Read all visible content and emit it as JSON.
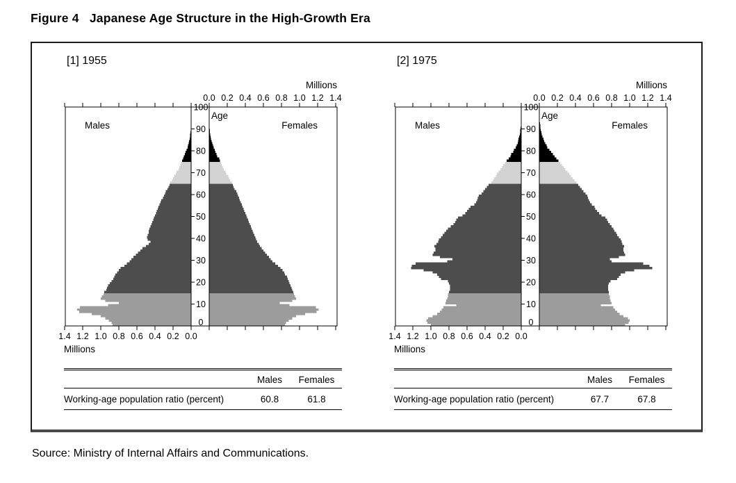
{
  "figure_title": "Figure 4   Japanese Age Structure in the High-Growth Era",
  "source_line": "Source: Ministry of Internal Affairs and Communications.",
  "chart_data": [
    {
      "type": "bar",
      "subtype": "population-pyramid",
      "panel_label": "[1] 1955",
      "year": "1955",
      "left_label": "Males",
      "right_label": "Females",
      "age_axis_label": "Age",
      "value_axis_label": "Millions",
      "value_axis_max": 1.4,
      "age_axis_max": 100,
      "grid": false,
      "top_tick_labels": [
        "0.0",
        "0.2",
        "0.4",
        "0.6",
        "0.8",
        "1.0",
        "1.2",
        "1.4"
      ],
      "bottom_tick_labels": [
        "1.4",
        "1.2",
        "1.0",
        "0.8",
        "0.6",
        "0.4",
        "0.2",
        "0.0"
      ],
      "age_tick_labels": [
        "0",
        "10",
        "20",
        "30",
        "40",
        "50",
        "60",
        "70",
        "80",
        "90",
        "100"
      ],
      "age_groups": [
        {
          "range": "0-14",
          "from": 0,
          "to": 14,
          "color": "#9c9c9c"
        },
        {
          "range": "15-64",
          "from": 15,
          "to": 64,
          "color": "#4d4d4d"
        },
        {
          "range": "65-74",
          "from": 65,
          "to": 74,
          "color": "#d2d2d2"
        },
        {
          "range": "75+",
          "from": 75,
          "to": 110,
          "color": "#000000"
        }
      ],
      "series": [
        {
          "name": "Males",
          "side": "left",
          "unit": "millions",
          "values": [
            0.87,
            0.88,
            0.91,
            0.95,
            1.0,
            1.1,
            1.24,
            1.26,
            1.23,
            0.92,
            0.8,
            0.95,
            1.0,
            0.99,
            0.97,
            0.96,
            0.94,
            0.93,
            0.92,
            0.9,
            0.88,
            0.86,
            0.85,
            0.84,
            0.82,
            0.8,
            0.78,
            0.74,
            0.71,
            0.68,
            0.66,
            0.64,
            0.61,
            0.59,
            0.56,
            0.54,
            0.5,
            0.47,
            0.45,
            0.48,
            0.49,
            0.48,
            0.47,
            0.47,
            0.46,
            0.45,
            0.44,
            0.43,
            0.42,
            0.41,
            0.4,
            0.39,
            0.38,
            0.37,
            0.36,
            0.35,
            0.34,
            0.33,
            0.31,
            0.3,
            0.29,
            0.28,
            0.26,
            0.25,
            0.24,
            0.23,
            0.21,
            0.2,
            0.19,
            0.17,
            0.16,
            0.14,
            0.13,
            0.12,
            0.11,
            0.1,
            0.09,
            0.08,
            0.07,
            0.06,
            0.05,
            0.04,
            0.033,
            0.027,
            0.022,
            0.017,
            0.013,
            0.01,
            0.007,
            0.005,
            0.004,
            0.003,
            0.002
          ]
        },
        {
          "name": "Females",
          "side": "right",
          "unit": "millions",
          "values": [
            0.84,
            0.85,
            0.88,
            0.92,
            0.96,
            1.06,
            1.19,
            1.21,
            1.18,
            0.89,
            0.78,
            0.92,
            0.96,
            0.95,
            0.94,
            0.93,
            0.92,
            0.91,
            0.9,
            0.89,
            0.88,
            0.87,
            0.86,
            0.84,
            0.83,
            0.81,
            0.79,
            0.76,
            0.73,
            0.7,
            0.68,
            0.66,
            0.64,
            0.62,
            0.6,
            0.58,
            0.56,
            0.55,
            0.53,
            0.52,
            0.51,
            0.5,
            0.49,
            0.48,
            0.47,
            0.46,
            0.45,
            0.44,
            0.43,
            0.42,
            0.41,
            0.4,
            0.39,
            0.38,
            0.37,
            0.36,
            0.35,
            0.34,
            0.33,
            0.32,
            0.31,
            0.3,
            0.28,
            0.27,
            0.26,
            0.25,
            0.23,
            0.22,
            0.21,
            0.19,
            0.18,
            0.16,
            0.15,
            0.14,
            0.13,
            0.12,
            0.11,
            0.09,
            0.08,
            0.07,
            0.06,
            0.05,
            0.042,
            0.034,
            0.027,
            0.021,
            0.016,
            0.012,
            0.009,
            0.007,
            0.005,
            0.004,
            0.003,
            0.002,
            0.001
          ]
        }
      ],
      "table": {
        "col_headers": [
          "Males",
          "Females"
        ],
        "rows": [
          {
            "label": "Working-age population ratio (percent)",
            "values": [
              "60.8",
              "61.8"
            ]
          }
        ]
      }
    },
    {
      "type": "bar",
      "subtype": "population-pyramid",
      "panel_label": "[2] 1975",
      "year": "1975",
      "left_label": "Males",
      "right_label": "Females",
      "age_axis_label": "Age",
      "value_axis_label": "Millions",
      "value_axis_max": 1.4,
      "age_axis_max": 100,
      "grid": false,
      "top_tick_labels": [
        "0.0",
        "0.2",
        "0.4",
        "0.6",
        "0.8",
        "1.0",
        "1.2",
        "1.4"
      ],
      "bottom_tick_labels": [
        "1.4",
        "1.2",
        "1.0",
        "0.8",
        "0.6",
        "0.4",
        "0.2",
        "0.0"
      ],
      "age_tick_labels": [
        "0",
        "10",
        "20",
        "30",
        "40",
        "50",
        "60",
        "70",
        "80",
        "90",
        "100"
      ],
      "age_groups": [
        {
          "range": "0-14",
          "from": 0,
          "to": 14,
          "color": "#9c9c9c"
        },
        {
          "range": "15-64",
          "from": 15,
          "to": 64,
          "color": "#4d4d4d"
        },
        {
          "range": "65-74",
          "from": 65,
          "to": 74,
          "color": "#d2d2d2"
        },
        {
          "range": "75+",
          "from": 75,
          "to": 110,
          "color": "#000000"
        }
      ],
      "series": [
        {
          "name": "Males",
          "side": "left",
          "unit": "millions",
          "values": [
            1.0,
            1.04,
            1.05,
            1.03,
            0.98,
            0.93,
            0.9,
            0.88,
            0.86,
            0.72,
            0.84,
            0.83,
            0.82,
            0.81,
            0.81,
            0.8,
            0.79,
            0.79,
            0.79,
            0.8,
            0.81,
            0.89,
            0.91,
            0.93,
            0.98,
            1.08,
            1.22,
            1.21,
            1.17,
            0.82,
            0.76,
            0.9,
            0.98,
            0.97,
            0.95,
            0.95,
            0.96,
            0.94,
            0.92,
            0.91,
            0.89,
            0.87,
            0.85,
            0.83,
            0.81,
            0.78,
            0.75,
            0.73,
            0.72,
            0.7,
            0.65,
            0.62,
            0.6,
            0.58,
            0.56,
            0.52,
            0.5,
            0.49,
            0.48,
            0.47,
            0.44,
            0.42,
            0.4,
            0.38,
            0.36,
            0.33,
            0.31,
            0.3,
            0.28,
            0.27,
            0.25,
            0.23,
            0.21,
            0.2,
            0.18,
            0.16,
            0.14,
            0.12,
            0.11,
            0.09,
            0.08,
            0.06,
            0.05,
            0.04,
            0.035,
            0.03,
            0.022,
            0.017,
            0.013,
            0.01,
            0.007,
            0.005,
            0.004,
            0.003,
            0.002,
            0.001
          ]
        },
        {
          "name": "Females",
          "side": "right",
          "unit": "millions",
          "values": [
            0.95,
            0.99,
            1.0,
            0.98,
            0.93,
            0.89,
            0.86,
            0.84,
            0.82,
            0.68,
            0.8,
            0.79,
            0.78,
            0.78,
            0.77,
            0.77,
            0.76,
            0.76,
            0.76,
            0.77,
            0.79,
            0.86,
            0.88,
            0.9,
            0.95,
            1.05,
            1.25,
            1.22,
            1.15,
            0.8,
            0.78,
            0.88,
            0.95,
            0.94,
            0.93,
            0.93,
            0.94,
            0.92,
            0.91,
            0.9,
            0.88,
            0.86,
            0.85,
            0.83,
            0.82,
            0.8,
            0.78,
            0.76,
            0.75,
            0.73,
            0.69,
            0.66,
            0.64,
            0.62,
            0.61,
            0.58,
            0.56,
            0.55,
            0.54,
            0.53,
            0.51,
            0.49,
            0.47,
            0.45,
            0.43,
            0.41,
            0.39,
            0.37,
            0.35,
            0.33,
            0.31,
            0.29,
            0.27,
            0.25,
            0.23,
            0.21,
            0.19,
            0.17,
            0.15,
            0.13,
            0.11,
            0.09,
            0.08,
            0.065,
            0.055,
            0.045,
            0.035,
            0.028,
            0.022,
            0.017,
            0.013,
            0.01,
            0.007,
            0.005,
            0.004,
            0.003,
            0.002,
            0.001
          ]
        }
      ],
      "table": {
        "col_headers": [
          "Males",
          "Females"
        ],
        "rows": [
          {
            "label": "Working-age population ratio (percent)",
            "values": [
              "67.7",
              "67.8"
            ]
          }
        ]
      }
    }
  ]
}
